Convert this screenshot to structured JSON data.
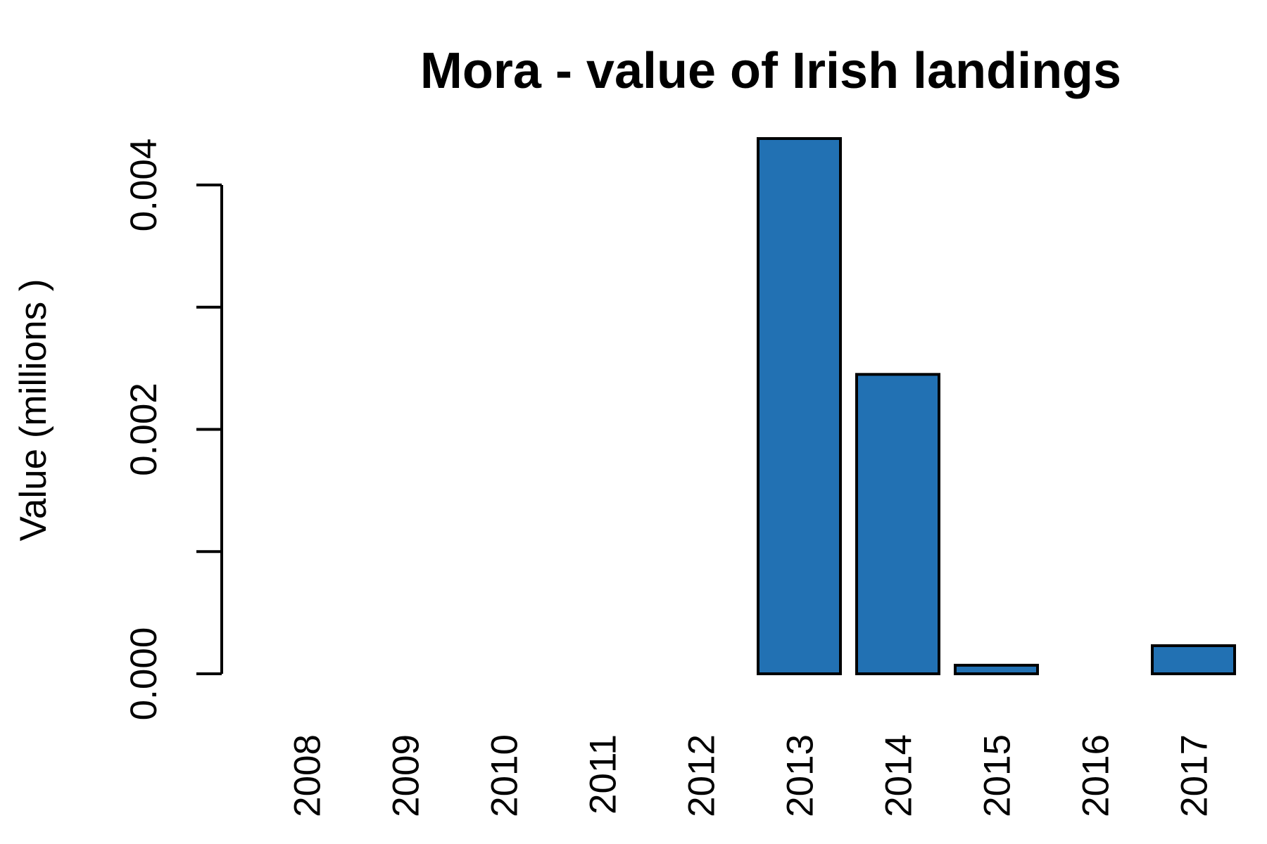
{
  "chart_data": {
    "type": "bar",
    "title": "Mora - value of Irish landings",
    "xlabel": "",
    "ylabel": "Value (millions )",
    "categories": [
      "2008",
      "2009",
      "2010",
      "2011",
      "2012",
      "2013",
      "2014",
      "2015",
      "2016",
      "2017"
    ],
    "values": [
      0,
      0,
      0,
      0,
      0,
      0.00438,
      0.00245,
      7e-05,
      0,
      0.00023
    ],
    "ylim": [
      0,
      0.0046
    ],
    "yticks": [
      0,
      0.001,
      0.002,
      0.003,
      0.004
    ],
    "ytick_labels": [
      "0.000",
      "",
      "0.002",
      "",
      "0.004"
    ],
    "bar_color": "#2271b3",
    "grid": false
  }
}
